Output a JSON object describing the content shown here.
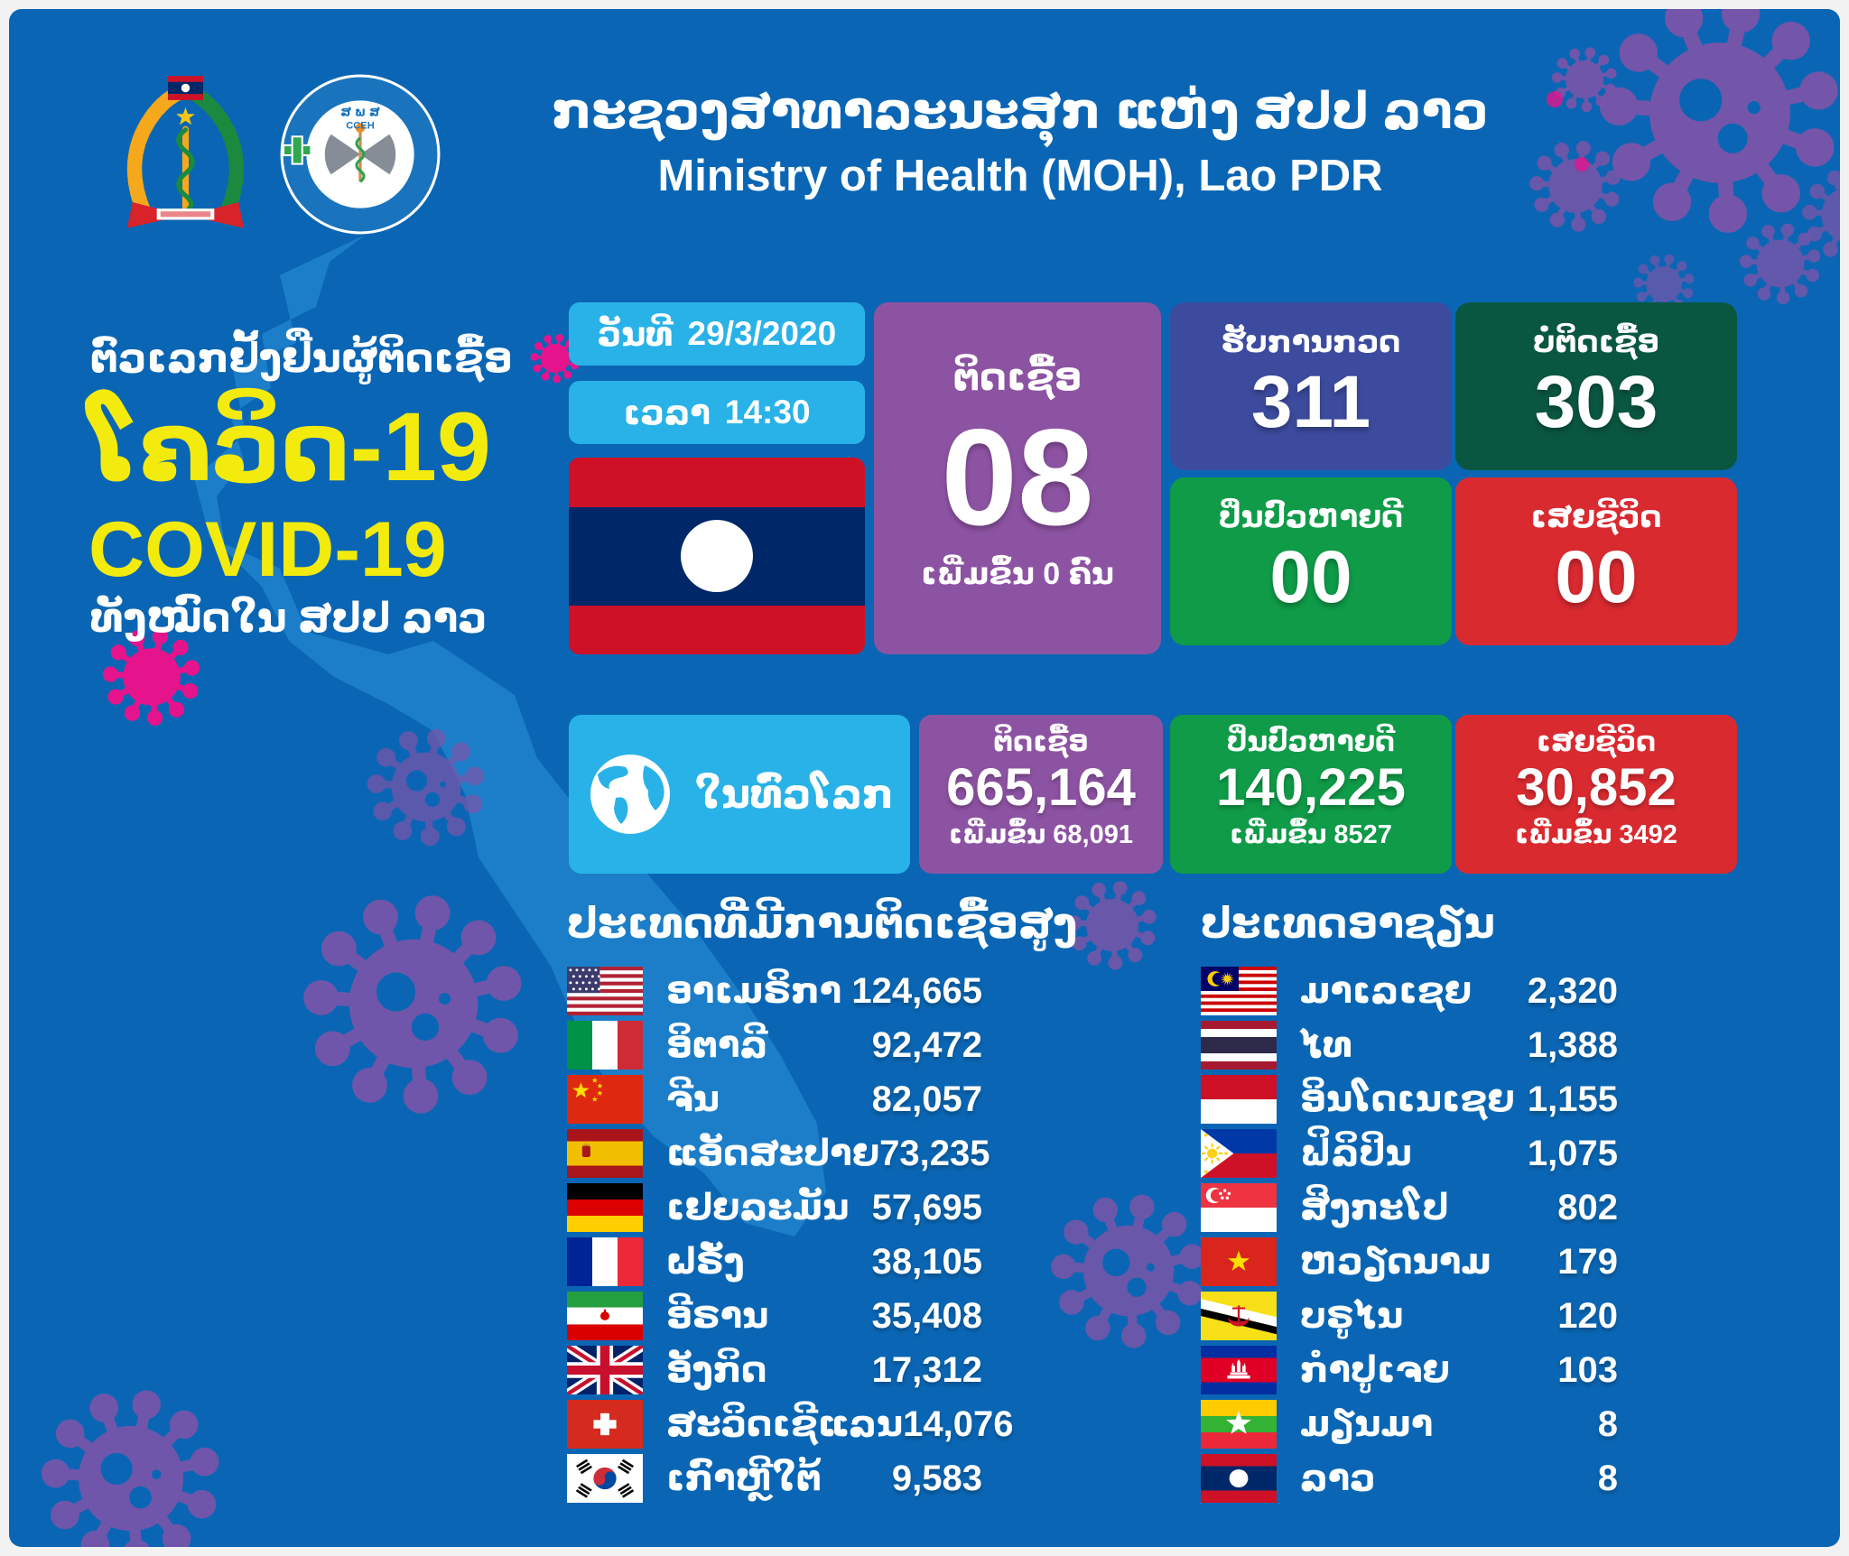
{
  "header": {
    "title_lao": "ກະຊວງສາທາລະນະສຸກ ແຫ່ງ ສປປ ລາວ",
    "title_en": "Ministry of Health (MOH), Lao PDR",
    "cceh_abbr": "ສ ພ ສ",
    "cceh_label": "CCEH"
  },
  "left_panel": {
    "subtitle": "ຕົວເລກຢັ້ງຢືນຜູ້ຕິດເຊື້ອ",
    "title_lao": "ໂຄວິດ-19",
    "title_en": "COVID-19",
    "caption": "ທັງໝົດໃນ ສປປ ລາວ"
  },
  "report": {
    "date_label": "ວັນທີ",
    "date_value": "29/3/2020",
    "time_label": "ເວລາ",
    "time_value": "14:30"
  },
  "laos_stats": {
    "infected": {
      "label": "ຕິດເຊື້ອ",
      "value": "08",
      "sub": "ເພີ່ມຂຶ້ນ 0 ຄົນ"
    },
    "tested": {
      "label": "ຮັບການກວດ",
      "value": "311"
    },
    "negative": {
      "label": "ບໍ່ຕິດເຊື້ອ",
      "value": "303"
    },
    "recovered": {
      "label": "ປິ່ນປົວຫາຍດີ",
      "value": "00"
    },
    "deaths": {
      "label": "ເສຍຊີວິດ",
      "value": "00"
    }
  },
  "world_stats": {
    "title": "ໃນທົ່ວໂລກ",
    "infected": {
      "label": "ຕິດເຊື້ອ",
      "value": "665,164",
      "sub": "ເພີ່ມຂຶ້ນ 68,091"
    },
    "recovered": {
      "label": "ປິ່ນປົວຫາຍດີ",
      "value": "140,225",
      "sub": "ເພີ່ມຂຶ້ນ 8527"
    },
    "deaths": {
      "label": "ເສຍຊີວິດ",
      "value": "30,852",
      "sub": "ເພີ່ມຂຶ້ນ 3492"
    }
  },
  "top_countries": {
    "heading": "ປະເທດທີ່ມີການຕິດເຊື້ອສູງ",
    "rows": [
      {
        "flag": "us",
        "name": "ອາເມຣິກາ",
        "value": "124,665"
      },
      {
        "flag": "italy",
        "name": "ອິຕາລີ",
        "value": "92,472"
      },
      {
        "flag": "china",
        "name": "ຈີນ",
        "value": "82,057"
      },
      {
        "flag": "spain",
        "name": "ແອັດສະປາຍ",
        "value": "73,235"
      },
      {
        "flag": "germany",
        "name": "ເຢຍລະມັນ",
        "value": "57,695"
      },
      {
        "flag": "france",
        "name": "ຝຣັ່ງ",
        "value": "38,105"
      },
      {
        "flag": "iran",
        "name": "ອີຣານ",
        "value": "35,408"
      },
      {
        "flag": "uk",
        "name": "ອັງກິດ",
        "value": "17,312"
      },
      {
        "flag": "switzerland",
        "name": "ສະວິດເຊີແລນ",
        "value": "14,076"
      },
      {
        "flag": "south-korea",
        "name": "ເກົາຫຼີໃຕ້",
        "value": "9,583"
      }
    ]
  },
  "asean_countries": {
    "heading": "ປະເທດອາຊຽນ",
    "rows": [
      {
        "flag": "malaysia",
        "name": "ມາເລເຊຍ",
        "value": "2,320"
      },
      {
        "flag": "thailand",
        "name": "ໄທ",
        "value": "1,388"
      },
      {
        "flag": "indonesia",
        "name": "ອິນໂດເນເຊຍ",
        "value": "1,155"
      },
      {
        "flag": "philippines",
        "name": "ຟິລິປິນ",
        "value": "1,075"
      },
      {
        "flag": "singapore",
        "name": "ສິງກະໂປ",
        "value": "802"
      },
      {
        "flag": "vietnam",
        "name": "ຫວຽດນາມ",
        "value": "179"
      },
      {
        "flag": "brunei",
        "name": "ບຣູໄນ",
        "value": "120"
      },
      {
        "flag": "cambodia",
        "name": "ກຳປູເຈຍ",
        "value": "103"
      },
      {
        "flag": "myanmar",
        "name": "ມຽນມາ",
        "value": "8"
      },
      {
        "flag": "laos",
        "name": "ລາວ",
        "value": "8"
      }
    ]
  },
  "colors": {
    "background": "#0a66b4",
    "map": "#1c7ec8",
    "cyan_box": "#29b2e8",
    "purple_card": "#8d53a3",
    "indigo_card": "#3c4b9e",
    "dark_green_card": "#0a5741",
    "green_card": "#0f9b48",
    "red_card": "#d92a30",
    "yellow_text": "#f3eb0e",
    "virus_purple": "#7a55a9",
    "virus_pink": "#e5148c"
  },
  "chart_data": [
    {
      "type": "table",
      "title": "ປະເທດທີ່ມີການຕິດເຊື້ອສູງ (countries with high infections)",
      "columns": [
        "country",
        "cases"
      ],
      "rows": [
        [
          "ອາເມຣິກາ (USA)",
          124665
        ],
        [
          "ອິຕາລີ (Italy)",
          92472
        ],
        [
          "ຈີນ (China)",
          82057
        ],
        [
          "ແອັດສະປາຍ (Spain)",
          73235
        ],
        [
          "ເຢຍລະມັນ (Germany)",
          57695
        ],
        [
          "ຝຣັ່ງ (France)",
          38105
        ],
        [
          "ອີຣານ (Iran)",
          35408
        ],
        [
          "ອັງກິດ (UK)",
          17312
        ],
        [
          "ສະວິດເຊີແລນ (Switzerland)",
          14076
        ],
        [
          "ເກົາຫຼີໃຕ້ (South Korea)",
          9583
        ]
      ]
    },
    {
      "type": "table",
      "title": "ປະເທດອາຊຽນ (ASEAN countries)",
      "columns": [
        "country",
        "cases"
      ],
      "rows": [
        [
          "ມາເລເຊຍ (Malaysia)",
          2320
        ],
        [
          "ໄທ (Thailand)",
          1388
        ],
        [
          "ອິນໂດເນເຊຍ (Indonesia)",
          1155
        ],
        [
          "ຟິລິປິນ (Philippines)",
          1075
        ],
        [
          "ສິງກະໂປ (Singapore)",
          802
        ],
        [
          "ຫວຽດນາມ (Vietnam)",
          179
        ],
        [
          "ບຣູໄນ (Brunei)",
          120
        ],
        [
          "ກຳປູເຈຍ (Cambodia)",
          103
        ],
        [
          "ມຽນມາ (Myanmar)",
          8
        ],
        [
          "ລາວ (Laos)",
          8
        ]
      ]
    },
    {
      "type": "table",
      "title": "Lao PDR status 29/3/2020 14:30",
      "columns": [
        "metric",
        "value",
        "increase"
      ],
      "rows": [
        [
          "ຕິດເຊື້ອ (infected)",
          8,
          0
        ],
        [
          "ຮັບການກວດ (tested)",
          311,
          null
        ],
        [
          "ບໍ່ຕິດເຊື້ອ (negative)",
          303,
          null
        ],
        [
          "ປິ່ນປົວຫາຍດີ (recovered)",
          0,
          null
        ],
        [
          "ເສຍຊີວິດ (deaths)",
          0,
          null
        ]
      ]
    },
    {
      "type": "table",
      "title": "ໃນທົ່ວໂລກ (worldwide)",
      "columns": [
        "metric",
        "value",
        "increase"
      ],
      "rows": [
        [
          "ຕິດເຊື້ອ (infected)",
          665164,
          68091
        ],
        [
          "ປິ່ນປົວຫາຍດີ (recovered)",
          140225,
          8527
        ],
        [
          "ເສຍຊີວິດ (deaths)",
          30852,
          3492
        ]
      ]
    }
  ]
}
